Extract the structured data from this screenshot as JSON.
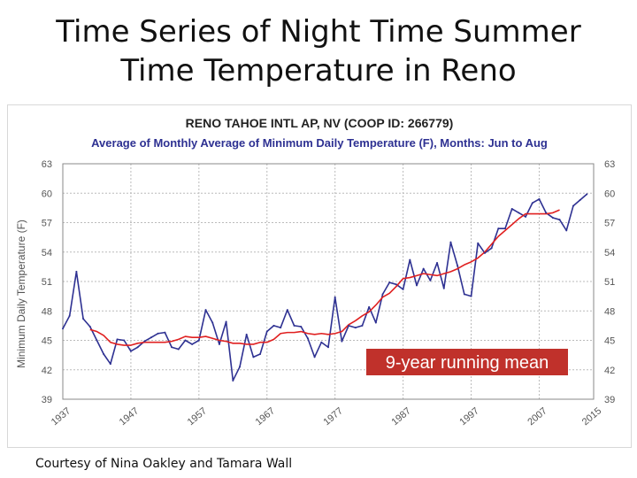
{
  "slide": {
    "title_line1": "Time Series of Night Time Summer",
    "title_line2": "Time Temperature in Reno",
    "credit": "Courtesy of Nina Oakley and Tamara Wall"
  },
  "chart_data": {
    "type": "line",
    "title": "RENO TAHOE INTL AP, NV (COOP ID: 266779)",
    "subtitle": "Average of Monthly Average of Minimum Daily Temperature (F), Months: Jun to Aug",
    "xlabel": "",
    "ylabel": "Minimum Daily Temperature (F)",
    "xlim": [
      1937,
      2015
    ],
    "ylim": [
      39,
      63
    ],
    "x_ticks": [
      1937,
      1947,
      1957,
      1967,
      1977,
      1987,
      1997,
      2007,
      2015
    ],
    "y_ticks": [
      39,
      42,
      45,
      48,
      51,
      54,
      57,
      60,
      63
    ],
    "grid": true,
    "annotation": "9-year running mean",
    "colors": {
      "series": "#2e3192",
      "running_mean": "#e02020",
      "title": "#222222",
      "subtitle": "#2e3192",
      "annotation_bg": "#c0312b",
      "annotation_text": "#ffffff"
    },
    "series": [
      {
        "points": [
          [
            1937,
            46.2
          ],
          [
            1938,
            47.5
          ],
          [
            1939,
            52.0
          ],
          [
            1940,
            47.2
          ],
          [
            1941,
            46.4
          ],
          [
            1942,
            45.0
          ],
          [
            1943,
            43.6
          ],
          [
            1944,
            42.6
          ],
          [
            1945,
            45.1
          ],
          [
            1946,
            45.0
          ],
          [
            1947,
            43.9
          ],
          [
            1948,
            44.3
          ],
          [
            1949,
            44.9
          ],
          [
            1950,
            45.3
          ],
          [
            1951,
            45.7
          ],
          [
            1952,
            45.8
          ],
          [
            1953,
            44.3
          ],
          [
            1954,
            44.1
          ],
          [
            1955,
            45.0
          ],
          [
            1956,
            44.6
          ],
          [
            1957,
            45.0
          ],
          [
            1958,
            48.1
          ],
          [
            1959,
            46.8
          ],
          [
            1960,
            44.6
          ],
          [
            1961,
            46.9
          ],
          [
            1962,
            40.9
          ],
          [
            1963,
            42.3
          ],
          [
            1964,
            45.6
          ],
          [
            1965,
            43.3
          ],
          [
            1966,
            43.6
          ],
          [
            1967,
            45.9
          ],
          [
            1968,
            46.5
          ],
          [
            1969,
            46.3
          ],
          [
            1970,
            48.1
          ],
          [
            1971,
            46.5
          ],
          [
            1972,
            46.4
          ],
          [
            1973,
            45.2
          ],
          [
            1974,
            43.3
          ],
          [
            1975,
            44.8
          ],
          [
            1976,
            44.3
          ],
          [
            1977,
            49.4
          ],
          [
            1978,
            44.9
          ],
          [
            1979,
            46.5
          ],
          [
            1980,
            46.3
          ],
          [
            1981,
            46.5
          ],
          [
            1982,
            48.4
          ],
          [
            1983,
            46.8
          ],
          [
            1984,
            49.7
          ],
          [
            1985,
            50.9
          ],
          [
            1986,
            50.7
          ],
          [
            1987,
            50.2
          ],
          [
            1988,
            53.2
          ],
          [
            1989,
            50.6
          ],
          [
            1990,
            52.3
          ],
          [
            1991,
            51.1
          ],
          [
            1992,
            52.9
          ],
          [
            1993,
            50.3
          ],
          [
            1994,
            55.0
          ],
          [
            1995,
            52.6
          ],
          [
            1996,
            49.7
          ],
          [
            1997,
            49.5
          ],
          [
            1998,
            54.9
          ],
          [
            1999,
            53.9
          ],
          [
            2000,
            54.4
          ],
          [
            2001,
            56.4
          ],
          [
            2002,
            56.4
          ],
          [
            2003,
            58.4
          ],
          [
            2004,
            58.0
          ],
          [
            2005,
            57.6
          ],
          [
            2006,
            59.0
          ],
          [
            2007,
            59.4
          ],
          [
            2008,
            58.0
          ],
          [
            2009,
            57.5
          ],
          [
            2010,
            57.3
          ],
          [
            2011,
            56.2
          ],
          [
            2012,
            58.7
          ],
          [
            2013,
            59.3
          ],
          [
            2014,
            59.9
          ]
        ]
      },
      {
        "points": [
          [
            1941,
            46.1
          ],
          [
            1942,
            45.9
          ],
          [
            1943,
            45.5
          ],
          [
            1944,
            44.8
          ],
          [
            1945,
            44.6
          ],
          [
            1946,
            44.5
          ],
          [
            1947,
            44.5
          ],
          [
            1948,
            44.7
          ],
          [
            1949,
            44.8
          ],
          [
            1950,
            44.8
          ],
          [
            1951,
            44.8
          ],
          [
            1952,
            44.8
          ],
          [
            1953,
            44.9
          ],
          [
            1954,
            45.1
          ],
          [
            1955,
            45.4
          ],
          [
            1956,
            45.3
          ],
          [
            1957,
            45.3
          ],
          [
            1958,
            45.4
          ],
          [
            1959,
            45.2
          ],
          [
            1960,
            45.0
          ],
          [
            1961,
            44.9
          ],
          [
            1962,
            44.7
          ],
          [
            1963,
            44.7
          ],
          [
            1964,
            44.6
          ],
          [
            1965,
            44.6
          ],
          [
            1966,
            44.8
          ],
          [
            1967,
            44.8
          ],
          [
            1968,
            45.1
          ],
          [
            1969,
            45.7
          ],
          [
            1970,
            45.8
          ],
          [
            1971,
            45.8
          ],
          [
            1972,
            45.9
          ],
          [
            1973,
            45.7
          ],
          [
            1974,
            45.6
          ],
          [
            1975,
            45.7
          ],
          [
            1976,
            45.6
          ],
          [
            1977,
            45.7
          ],
          [
            1978,
            45.9
          ],
          [
            1979,
            46.6
          ],
          [
            1980,
            47.0
          ],
          [
            1981,
            47.5
          ],
          [
            1982,
            47.9
          ],
          [
            1983,
            48.6
          ],
          [
            1984,
            49.4
          ],
          [
            1985,
            49.8
          ],
          [
            1986,
            50.5
          ],
          [
            1987,
            51.3
          ],
          [
            1988,
            51.4
          ],
          [
            1989,
            51.6
          ],
          [
            1990,
            51.8
          ],
          [
            1991,
            51.7
          ],
          [
            1992,
            51.6
          ],
          [
            1993,
            51.8
          ],
          [
            1994,
            52.0
          ],
          [
            1995,
            52.3
          ],
          [
            1996,
            52.7
          ],
          [
            1997,
            53.0
          ],
          [
            1998,
            53.4
          ],
          [
            1999,
            54.0
          ],
          [
            2000,
            54.8
          ],
          [
            2001,
            55.6
          ],
          [
            2002,
            56.2
          ],
          [
            2003,
            56.8
          ],
          [
            2004,
            57.4
          ],
          [
            2005,
            57.9
          ],
          [
            2006,
            57.9
          ],
          [
            2007,
            57.9
          ],
          [
            2008,
            57.9
          ],
          [
            2009,
            58.0
          ],
          [
            2010,
            58.3
          ]
        ]
      }
    ]
  }
}
